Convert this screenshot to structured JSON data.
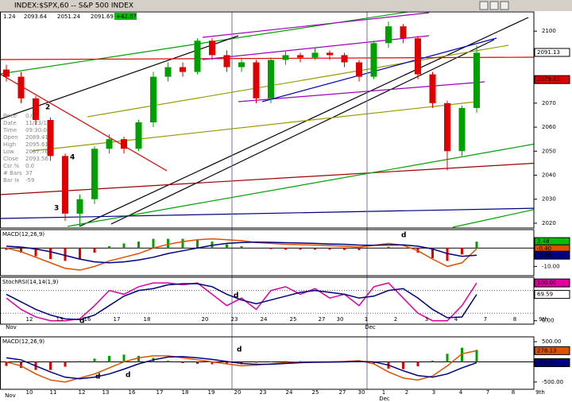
{
  "window_title": "INDEX:$SPX,60 -- S&P 500 INDEX",
  "quote_bar": [
    "1.24",
    "2093.64",
    "2051.24",
    "2091.69",
    "+42.07"
  ],
  "info_box": [
    [
      "Price",
      "0.00"
    ],
    [
      "Date",
      "11/23/15"
    ],
    [
      "Time",
      "09:30:00"
    ],
    [
      "Open",
      "2089.41"
    ],
    [
      "High",
      "2095.61"
    ],
    [
      "Low",
      "2087.76"
    ],
    [
      "Close",
      "2093.56"
    ],
    [
      "Csr %",
      "0.0"
    ],
    [
      "# Bars",
      "37"
    ],
    [
      "Bar Ix",
      "-59"
    ]
  ],
  "chart_data": [
    {
      "type": "candlestick",
      "up_color": "#00a000",
      "down_color": "#e00000",
      "open": [
        2084,
        2081,
        2072,
        2063,
        2048,
        2024,
        2030,
        2051,
        2055,
        2051,
        2062,
        2081,
        2085,
        2083,
        2096,
        2090,
        2085,
        2087,
        2072,
        2088,
        2090,
        2089,
        2091,
        2090,
        2087,
        2081,
        2095,
        2102,
        2097,
        2082,
        2070,
        2050,
        2068
      ],
      "high": [
        2086,
        2083,
        2073,
        2064,
        2049,
        2032,
        2052,
        2057,
        2056,
        2063,
        2083,
        2087,
        2087,
        2097,
        2097,
        2092,
        2089,
        2088,
        2089,
        2092,
        2091,
        2093,
        2092,
        2091,
        2088,
        2096,
        2104,
        2103,
        2098,
        2083,
        2071,
        2069,
        2094
      ],
      "low": [
        2079,
        2070,
        2061,
        2046,
        2021,
        2019,
        2028,
        2049,
        2049,
        2050,
        2060,
        2079,
        2081,
        2082,
        2088,
        2083,
        2083,
        2070,
        2070,
        2086,
        2087,
        2088,
        2088,
        2085,
        2079,
        2080,
        2093,
        2095,
        2080,
        2068,
        2042,
        2048,
        2066
      ],
      "close": [
        2081,
        2072,
        2063,
        2048,
        2024,
        2030,
        2051,
        2055,
        2051,
        2062,
        2081,
        2085,
        2083,
        2096,
        2090,
        2085,
        2087,
        2072,
        2088,
        2090,
        2089,
        2091,
        2090,
        2087,
        2081,
        2095,
        2102,
        2097,
        2082,
        2070,
        2050,
        2068,
        2091
      ],
      "ylim": [
        2018,
        2108
      ],
      "yticks": [
        2020,
        2030,
        2040,
        2050,
        2060,
        2070,
        2080,
        2090,
        2100
      ],
      "price_labels": [
        {
          "value": 2091.13,
          "label": "2091.13",
          "color": "#ffffff"
        },
        {
          "value": 2079.82,
          "label": "2079.82",
          "color": "#e00000"
        }
      ],
      "annotations": [
        {
          "text": "2",
          "color": "#000000"
        },
        {
          "text": "4",
          "color": "#000000"
        },
        {
          "text": "3",
          "color": "#000000"
        }
      ]
    },
    {
      "type": "line",
      "title": "MACD(12,26,9)",
      "ylim": [
        -15,
        10
      ],
      "yticks": [
        {
          "value": -10,
          "label": "-10.00"
        }
      ],
      "hlines": [
        0
      ],
      "series": [
        {
          "type": "bar",
          "color": "#00a000",
          "negative_color": "#e00000",
          "values": [
            -1,
            -2.5,
            -4.5,
            -6,
            -7,
            -6,
            -2.5,
            1,
            2.5,
            3.5,
            5,
            5,
            5,
            4.5,
            3.5,
            2,
            1,
            -0.2,
            -0.6,
            -0.9,
            -0.9,
            -0.9,
            -0.9,
            -1,
            -1.1,
            0,
            0.8,
            -0.2,
            -2.5,
            -5.5,
            -7,
            -3.5,
            3.48
          ],
          "last_label": "3.48"
        },
        {
          "color": "#e05000",
          "values": [
            0,
            -2,
            -5,
            -8,
            -11,
            -12,
            -10,
            -7,
            -5,
            -3,
            0,
            2,
            3.5,
            4.5,
            5,
            4.5,
            4,
            3,
            2.5,
            2,
            1.8,
            1.6,
            1.3,
            1,
            0.5,
            1.5,
            2.5,
            1.5,
            -1.5,
            -6,
            -10,
            -8,
            -0.4
          ],
          "last_label": "-0.40"
        },
        {
          "color": "#000080",
          "values": [
            1,
            0.5,
            -0.5,
            -2,
            -4,
            -6,
            -7.5,
            -8,
            -7.5,
            -6.5,
            -5,
            -3,
            -1.5,
            0,
            1.5,
            2.5,
            3,
            3.2,
            3.1,
            2.9,
            2.7,
            2.5,
            2.2,
            2,
            1.6,
            1.5,
            1.7,
            1.7,
            1,
            -0.5,
            -3,
            -4.5,
            -3.88
          ],
          "last_label": "-3.88"
        }
      ],
      "annotations": [
        {
          "text": "d",
          "color": "#e00000"
        }
      ]
    },
    {
      "type": "line",
      "title": "StochRSI(14,14(1,9)",
      "ylim": [
        -9,
        115
      ],
      "yticks": [
        {
          "value": 0,
          "label": "0.00"
        }
      ],
      "hlines": [
        20,
        80
      ],
      "series": [
        {
          "color": "#e000a0",
          "values": [
            60,
            30,
            10,
            0,
            0,
            5,
            40,
            80,
            70,
            90,
            100,
            100,
            95,
            100,
            70,
            40,
            60,
            30,
            80,
            90,
            70,
            85,
            60,
            70,
            40,
            90,
            100,
            60,
            20,
            0,
            0,
            40,
            100
          ],
          "last_label": "100.00"
        },
        {
          "color": "#000080",
          "values": [
            70,
            50,
            30,
            15,
            5,
            3,
            15,
            40,
            65,
            80,
            85,
            95,
            98,
            98,
            90,
            70,
            55,
            45,
            55,
            65,
            75,
            80,
            75,
            70,
            60,
            65,
            80,
            85,
            60,
            30,
            8,
            10,
            69.59
          ],
          "last_label": "69.59"
        }
      ],
      "x_labels": [
        "Nov",
        "12",
        "13",
        "16",
        "17",
        "18",
        "20",
        "23",
        "24",
        "25",
        "27",
        "30",
        "1",
        "Dec",
        "2",
        "3",
        "4",
        "7",
        "8",
        "9th"
      ],
      "annotations": [
        {
          "text": "d",
          "color": "#e00000"
        },
        {
          "text": "d",
          "color": "#00a000"
        }
      ]
    },
    {
      "type": "line",
      "title": "MACD(12,26,9)",
      "ylim": [
        -680,
        620
      ],
      "yticks": [
        {
          "value": 500,
          "label": "500.00"
        },
        {
          "value": -500,
          "label": "-500.00"
        }
      ],
      "hlines": [
        0
      ],
      "series": [
        {
          "type": "bar",
          "color": "#00a000",
          "negative_color": "#e00000",
          "values": [
            -100,
            -150,
            -200,
            -200,
            -120,
            20,
            80,
            150,
            180,
            150,
            100,
            30,
            -30,
            -50,
            -60,
            -60,
            -60,
            -20,
            10,
            20,
            20,
            10,
            5,
            10,
            20,
            -50,
            -170,
            -180,
            -110,
            30,
            200,
            350,
            298.33
          ]
        },
        {
          "color": "#e05000",
          "values": [
            0,
            -100,
            -300,
            -450,
            -500,
            -400,
            -300,
            -150,
            0,
            100,
            150,
            150,
            100,
            50,
            0,
            -50,
            -100,
            -80,
            -50,
            -20,
            0,
            0,
            0,
            10,
            30,
            -50,
            -250,
            -400,
            -450,
            -350,
            -100,
            200,
            278.13
          ],
          "last_label": "278.13"
        },
        {
          "color": "#000080",
          "values": [
            100,
            50,
            -100,
            -250,
            -380,
            -420,
            -380,
            -300,
            -180,
            -50,
            50,
            120,
            130,
            100,
            60,
            10,
            -40,
            -60,
            -60,
            -40,
            -20,
            -10,
            -5,
            0,
            10,
            0,
            -80,
            -220,
            -340,
            -380,
            -300,
            -150,
            -20.2
          ],
          "last_label": "-20.20"
        }
      ],
      "x_labels": [
        "Nov",
        "10",
        "11",
        "12",
        "13",
        "16",
        "17",
        "18",
        "19",
        "20",
        "23",
        "24",
        "25",
        "27",
        "30",
        "1",
        "Dec",
        "2",
        "3",
        "4",
        "7",
        "8",
        "9th"
      ],
      "annotations": [
        {
          "text": "d",
          "color": "#e00000"
        },
        {
          "text": "d",
          "color": "#00a000"
        },
        {
          "text": "d",
          "color": "#00a000"
        }
      ]
    }
  ]
}
